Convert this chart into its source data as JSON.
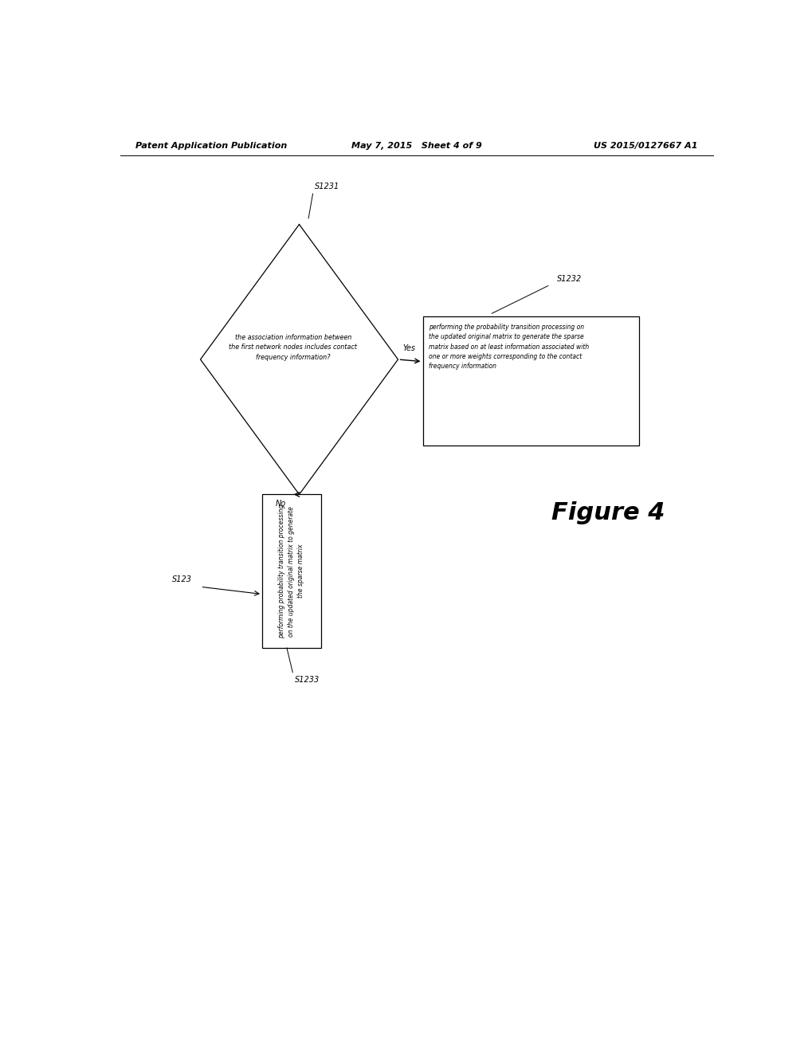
{
  "header_left": "Patent Application Publication",
  "header_center": "May 7, 2015   Sheet 4 of 9",
  "header_right": "US 2015/0127667 A1",
  "figure_label": "Figure 4",
  "diamond_label": "S1231",
  "diamond_text": "the association information between\nthe first network nodes includes contact\nfrequency information?",
  "box_right_label": "S1232",
  "box_right_text": "performing the probability transition processing on\nthe updated original matrix to generate the sparse\nmatrix based on at least information associated with\none or more weights corresponding to the contact\nfrequency information",
  "box_bottom_label": "S1233",
  "box_bottom_step_label": "S123",
  "box_bottom_text": "performing probability transition processing\non the updated original matrix to generate\nthe sparse matrix",
  "yes_label": "Yes",
  "no_label": "No",
  "bg_color": "#ffffff",
  "text_color": "#000000",
  "line_color": "#000000",
  "font_size_header": 8,
  "font_size_label": 7,
  "font_size_body": 6,
  "font_size_figure": 22
}
